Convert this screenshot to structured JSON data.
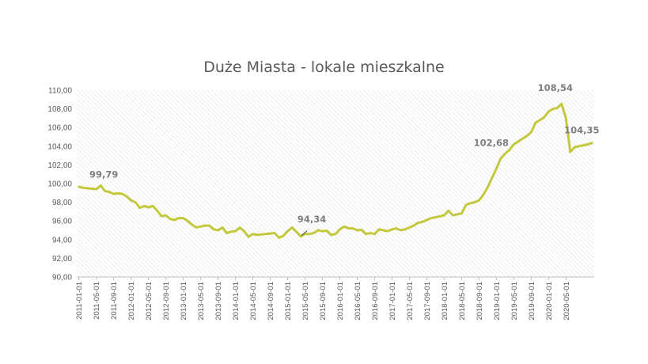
{
  "chart_data": {
    "type": "line",
    "title": "Duże Miasta - lokale mieszkalne",
    "xlabel": "",
    "ylabel": "",
    "ylim": [
      90,
      110
    ],
    "yticks": [
      "90,00",
      "92,00",
      "94,00",
      "96,00",
      "98,00",
      "100,00",
      "102,00",
      "104,00",
      "106,00",
      "108,00",
      "110,00"
    ],
    "grid": "hatched plot area",
    "legend": "none",
    "line_color": "#c3c83c",
    "x_tick_labels": [
      "2011-01-01",
      "2011-05-01",
      "2011-09-01",
      "2012-01-01",
      "2012-05-01",
      "2012-09-01",
      "2013-01-01",
      "2013-05-01",
      "2013-09-01",
      "2014-01-01",
      "2014-05-01",
      "2014-09-01",
      "2015-01-01",
      "2015-05-01",
      "2015-09-01",
      "2016-01-01",
      "2016-05-01",
      "2016-09-01",
      "2017-01-01",
      "2017-05-01",
      "2017-09-01",
      "2018-01-01",
      "2018-05-01",
      "2018-09-01",
      "2019-01-01",
      "2019-05-01",
      "2019-09-01",
      "2020-01-01",
      "2020-05-01"
    ],
    "x_start": "2011-01",
    "x_end": "2020-09",
    "series": [
      {
        "values": [
          99.65,
          99.55,
          99.5,
          99.45,
          99.4,
          99.79,
          99.2,
          99.1,
          98.9,
          98.95,
          98.9,
          98.6,
          98.2,
          98.0,
          97.4,
          97.6,
          97.45,
          97.6,
          97.1,
          96.5,
          96.6,
          96.2,
          96.1,
          96.3,
          96.3,
          96.0,
          95.6,
          95.3,
          95.4,
          95.5,
          95.5,
          95.1,
          95.0,
          95.3,
          94.7,
          94.85,
          94.9,
          95.3,
          94.9,
          94.3,
          94.6,
          94.5,
          94.55,
          94.6,
          94.65,
          94.7,
          94.2,
          94.4,
          94.9,
          95.3,
          94.85,
          94.34,
          94.6,
          94.6,
          94.7,
          95.0,
          94.9,
          94.95,
          94.5,
          94.6,
          95.1,
          95.4,
          95.2,
          95.2,
          95.0,
          95.05,
          94.6,
          94.7,
          94.6,
          95.1,
          95.0,
          94.9,
          95.1,
          95.2,
          95.0,
          95.1,
          95.3,
          95.5,
          95.8,
          95.9,
          96.1,
          96.3,
          96.4,
          96.5,
          96.6,
          97.1,
          96.6,
          96.7,
          96.8,
          97.7,
          97.9,
          98.0,
          98.2,
          98.8,
          99.6,
          100.6,
          101.6,
          102.68,
          103.2,
          103.6,
          104.2,
          104.5,
          104.8,
          105.1,
          105.5,
          106.5,
          106.8,
          107.1,
          107.7,
          108.0,
          108.1,
          108.54,
          107.0,
          103.4,
          103.9,
          104.0,
          104.1,
          104.2,
          104.35
        ]
      }
    ],
    "annotations": [
      {
        "text": "99,79",
        "x": "2011-06",
        "y": 99.79
      },
      {
        "text": "94,34",
        "x": "2015-04",
        "y": 94.34
      },
      {
        "text": "102,68",
        "x": "2019-02",
        "y": 102.68
      },
      {
        "text": "108,54",
        "x": "2020-04",
        "y": 108.54
      },
      {
        "text": "104,35",
        "x": "2020-09",
        "y": 104.35
      }
    ]
  }
}
